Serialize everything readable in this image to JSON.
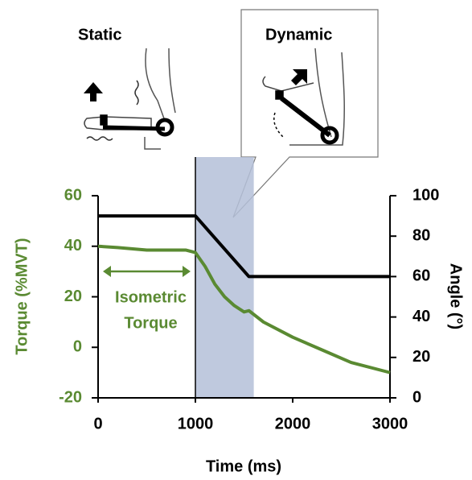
{
  "chart_data": {
    "type": "line",
    "panels": [
      "Static",
      "Dynamic"
    ],
    "xlabel": "Time (ms)",
    "ylabel": "Torque (%MVT)",
    "y2label": "Angle (°)",
    "annotation_lines": [
      "Isometric",
      "Torque"
    ],
    "highlight": [
      1000,
      1600
    ],
    "xlim": [
      0,
      3000
    ],
    "xticks": [
      0,
      1000,
      2000,
      3000
    ],
    "ylim": [
      -20,
      60
    ],
    "yticks": [
      -20,
      0,
      20,
      40,
      60
    ],
    "y2lim": [
      0,
      100
    ],
    "y2ticks": [
      0,
      20,
      40,
      60,
      80,
      100
    ],
    "series": [
      {
        "color": "#5a8a32",
        "axis": "y",
        "x": [
          0,
          200,
          500,
          900,
          1000,
          1100,
          1200,
          1300,
          1400,
          1500,
          1550,
          1700,
          2000,
          2300,
          2600,
          3000
        ],
        "values": [
          40,
          39.5,
          38.5,
          38.5,
          37.5,
          32,
          25,
          20,
          16.5,
          14,
          14.5,
          10,
          4,
          -1,
          -6,
          -10
        ]
      },
      {
        "color": "#000000",
        "axis": "y2",
        "x": [
          0,
          1000,
          1550,
          3000
        ],
        "values": [
          90,
          90,
          60,
          60
        ]
      }
    ]
  }
}
